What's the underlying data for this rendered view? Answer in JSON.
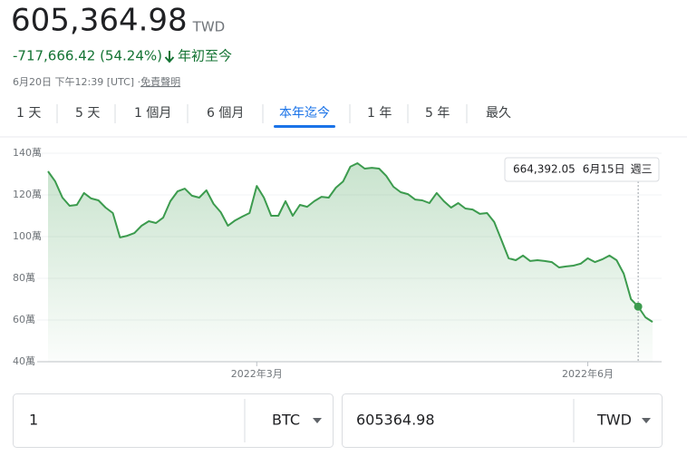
{
  "header": {
    "price": "605,364.98",
    "currency": "TWD",
    "change": "-717,666.42 (54.24%)",
    "period": "年初至今",
    "timestamp": "6月20日 下午12:39 [UTC] · ",
    "disclaimer": "免責聲明"
  },
  "tabs": [
    "1 天",
    "5 天",
    "1 個月",
    "6 個月",
    "本年迄今",
    "1 年",
    "5 年",
    "最久"
  ],
  "selected_tab": 4,
  "chart_data": {
    "type": "line",
    "categories": [
      null,
      null,
      null,
      null,
      null,
      null,
      null,
      null,
      null,
      null,
      null,
      null,
      null,
      null,
      null,
      null,
      null,
      null,
      null,
      null,
      null,
      null,
      null,
      null,
      null,
      null,
      null,
      null,
      null,
      "2022年3月",
      null,
      null,
      null,
      null,
      null,
      null,
      null,
      null,
      null,
      null,
      null,
      null,
      null,
      null,
      null,
      null,
      null,
      null,
      null,
      null,
      null,
      null,
      null,
      null,
      null,
      null,
      null,
      null,
      null,
      null,
      null,
      null,
      null,
      null,
      null,
      null,
      null,
      null,
      null,
      null,
      null,
      null,
      null,
      null,
      null,
      "2022年6月",
      null,
      null,
      null,
      null,
      null,
      null,
      null,
      null,
      null
    ],
    "values": [
      1313000,
      1265000,
      1187000,
      1148000,
      1152000,
      1209000,
      1183000,
      1174000,
      1139000,
      1113000,
      996000,
      1004000,
      1017000,
      1052000,
      1074000,
      1065000,
      1091000,
      1170000,
      1217000,
      1230000,
      1196000,
      1187000,
      1222000,
      1157000,
      1117000,
      1052000,
      1078000,
      1096000,
      1113000,
      1243000,
      1187000,
      1100000,
      1100000,
      1170000,
      1100000,
      1152000,
      1143000,
      1170000,
      1191000,
      1187000,
      1235000,
      1265000,
      1335000,
      1352000,
      1326000,
      1330000,
      1326000,
      1291000,
      1239000,
      1213000,
      1204000,
      1178000,
      1174000,
      1161000,
      1209000,
      1170000,
      1139000,
      1161000,
      1135000,
      1130000,
      1109000,
      1113000,
      1070000,
      983000,
      896000,
      887000,
      909000,
      883000,
      887000,
      883000,
      878000,
      852000,
      857000,
      861000,
      870000,
      896000,
      878000,
      891000,
      909000,
      887000,
      822000,
      700000,
      664392.05,
      613000,
      591000
    ],
    "color": "#3c9b4e",
    "ylim": [
      400000,
      1400000
    ],
    "yticks": [
      {
        "value": 400000,
        "label": "40萬"
      },
      {
        "value": 600000,
        "label": "60萬"
      },
      {
        "value": 800000,
        "label": "80萬"
      },
      {
        "value": 1000000,
        "label": "100萬"
      },
      {
        "value": 1200000,
        "label": "120萬"
      },
      {
        "value": 1400000,
        "label": "140萬"
      }
    ],
    "grid": true,
    "tooltip": {
      "value": 664392.05,
      "label": "664,392.05",
      "date": "6月15日",
      "weekday": "週三"
    }
  },
  "converter": {
    "amount": "1",
    "from": "BTC",
    "result": "605364.98",
    "to": "TWD"
  }
}
